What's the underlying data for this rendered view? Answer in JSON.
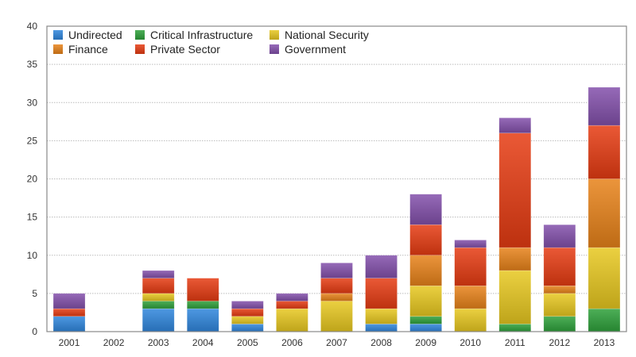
{
  "chart_data": {
    "type": "bar",
    "stacked": true,
    "title": "",
    "xlabel": "",
    "ylabel": "",
    "ylim": [
      0,
      40
    ],
    "yticks": [
      0,
      5,
      10,
      15,
      20,
      25,
      30,
      35,
      40
    ],
    "grid": true,
    "legend_position": "top-left",
    "categories": [
      "2001",
      "2002",
      "2003",
      "2004",
      "2005",
      "2006",
      "2007",
      "2008",
      "2009",
      "2010",
      "2011",
      "2012",
      "2013"
    ],
    "series": [
      {
        "name": "Undirected",
        "color": "#2f86dd",
        "values": [
          2,
          0,
          3,
          3,
          1,
          0,
          0,
          1,
          1,
          0,
          0,
          0,
          0
        ]
      },
      {
        "name": "Critical Infrastructure",
        "color": "#2ea13a",
        "values": [
          0,
          0,
          1,
          1,
          0,
          0,
          0,
          0,
          1,
          0,
          1,
          2,
          3
        ]
      },
      {
        "name": "National Security",
        "color": "#e8c820",
        "values": [
          0,
          0,
          1,
          0,
          1,
          3,
          4,
          2,
          4,
          3,
          7,
          3,
          8
        ]
      },
      {
        "name": "Finance",
        "color": "#e8821a",
        "values": [
          0,
          0,
          0,
          0,
          0,
          0,
          1,
          0,
          4,
          3,
          3,
          1,
          9
        ]
      },
      {
        "name": "Private Sector",
        "color": "#e63c12",
        "values": [
          1,
          0,
          2,
          3,
          1,
          1,
          2,
          4,
          4,
          5,
          15,
          5,
          7
        ]
      },
      {
        "name": "Government",
        "color": "#8350ab",
        "values": [
          2,
          0,
          1,
          0,
          1,
          1,
          2,
          3,
          4,
          1,
          2,
          3,
          5
        ]
      }
    ],
    "legend_layout": [
      [
        "Undirected",
        "Critical Infrastructure",
        "National Security"
      ],
      [
        "Finance",
        "Private Sector",
        "Government"
      ]
    ]
  }
}
